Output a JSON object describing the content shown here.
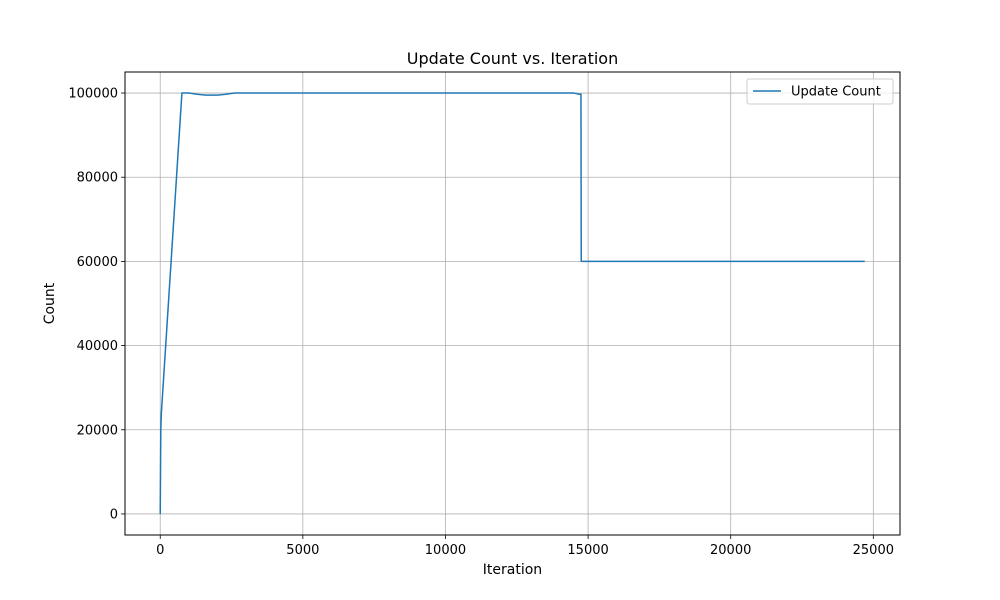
{
  "chart_data": {
    "type": "line",
    "title": "Update Count vs. Iteration",
    "xlabel": "Iteration",
    "ylabel": "Count",
    "xlim": [
      -1235,
      25935
    ],
    "ylim": [
      -5000,
      105000
    ],
    "xticks": [
      0,
      5000,
      10000,
      15000,
      20000,
      25000
    ],
    "yticks": [
      0,
      20000,
      40000,
      60000,
      80000,
      100000
    ],
    "grid": true,
    "legend_position": "top-right",
    "series": [
      {
        "name": "Update Count",
        "color": "#1f77b4",
        "x": [
          0,
          20,
          40,
          760,
          1000,
          1300,
          1600,
          2000,
          2300,
          2600,
          3000,
          5000,
          10000,
          14500,
          14700,
          14750,
          14760,
          14800,
          20000,
          24700
        ],
        "y": [
          0,
          20000,
          24000,
          100000,
          100000,
          99700,
          99500,
          99500,
          99700,
          100000,
          100000,
          100000,
          100000,
          100000,
          99700,
          99700,
          60000,
          60000,
          60000,
          60000
        ]
      }
    ]
  }
}
